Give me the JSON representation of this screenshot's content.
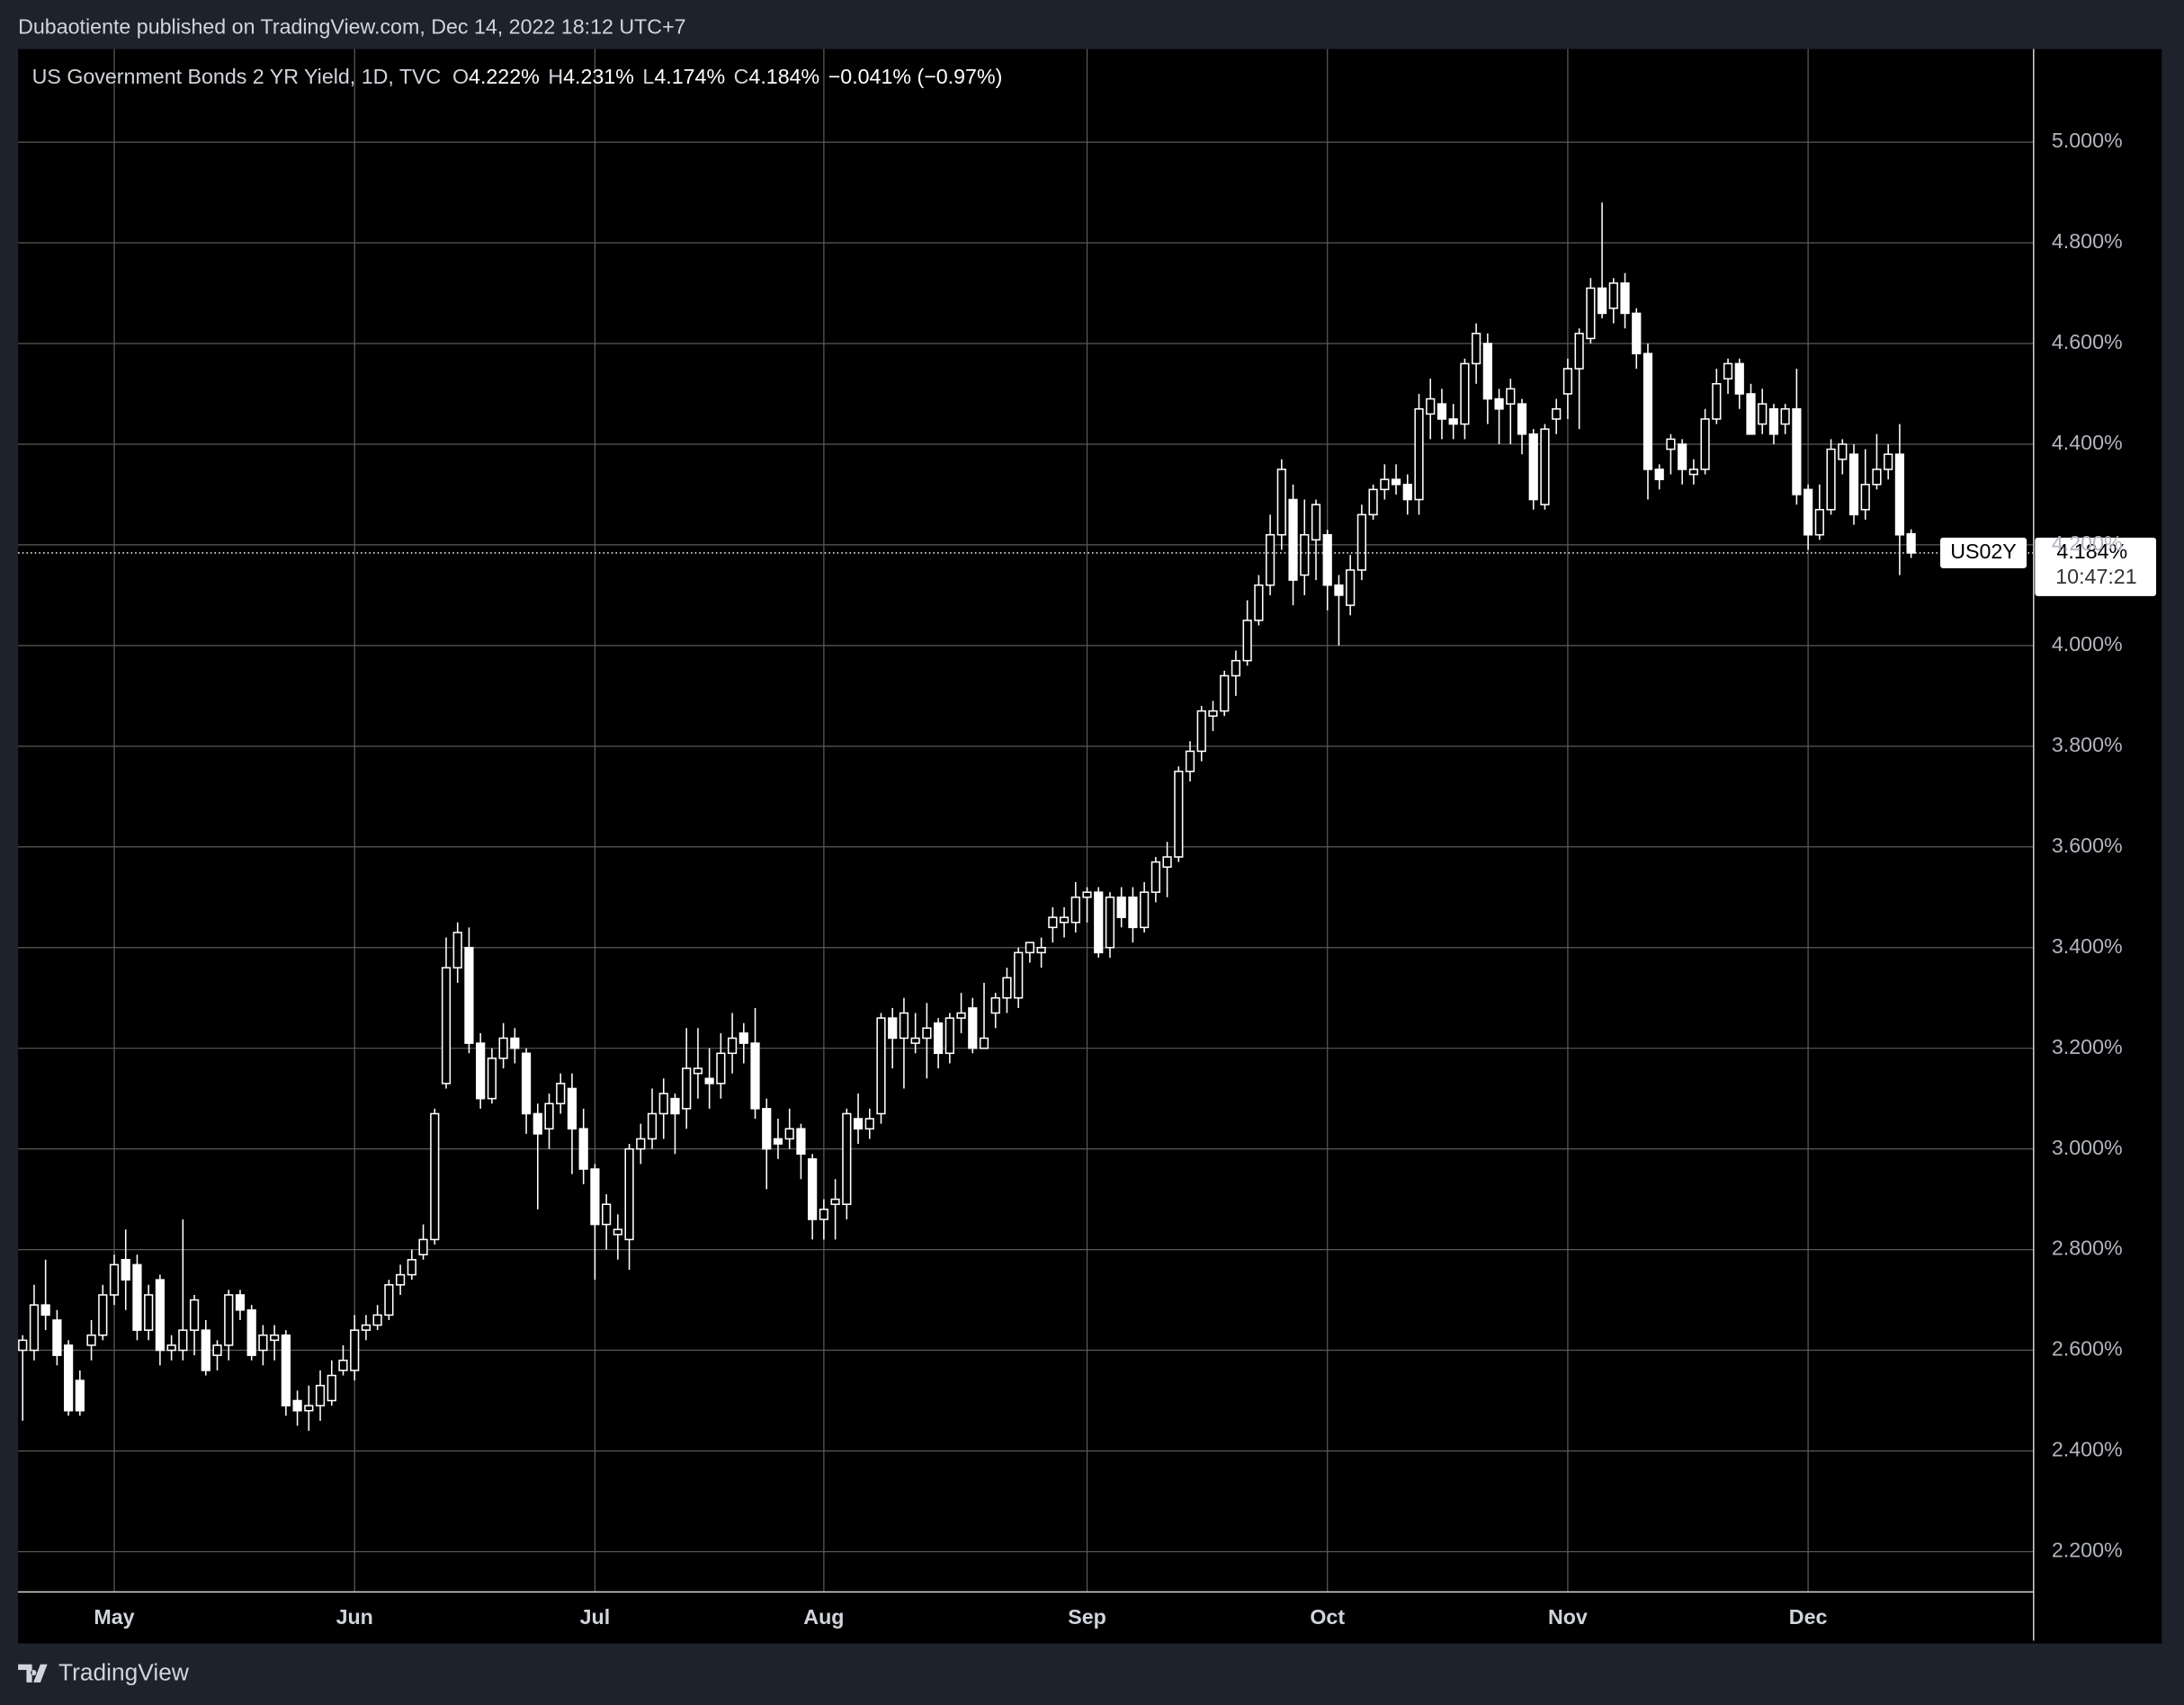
{
  "header": "Dubaotiente published on TradingView.com, Dec 14, 2022 18:12 UTC+7",
  "chart_data": {
    "type": "candlestick",
    "legend": {
      "text": "US Government Bonds 2 YR Yield, 1D, TVC",
      "o": "O",
      "open": "4.222%",
      "h": "H",
      "high": "4.231%",
      "l": "L",
      "low": "4.174%",
      "c": "C",
      "close": "4.184%",
      "change": "−0.041% (−0.97%)"
    },
    "series": [
      {
        "name": "US02Y",
        "open": [
          2.6,
          2.6,
          2.69,
          2.66,
          2.61,
          2.54,
          2.61,
          2.63,
          2.71,
          2.78,
          2.77,
          2.64,
          2.74,
          2.6,
          2.6,
          2.64,
          2.64,
          2.59,
          2.61,
          2.71,
          2.68,
          2.6,
          2.62,
          2.63,
          2.5,
          2.48,
          2.49,
          2.5,
          2.56,
          2.56,
          2.64,
          2.65,
          2.67,
          2.73,
          2.75,
          2.79,
          2.82,
          3.13,
          3.36,
          3.4,
          3.21,
          3.1,
          3.18,
          3.22,
          3.19,
          3.07,
          3.04,
          3.09,
          3.12,
          3.04,
          2.96,
          2.85,
          2.83,
          2.82,
          3.0,
          3.02,
          3.07,
          3.1,
          3.08,
          3.15,
          3.14,
          3.13,
          3.19,
          3.23,
          3.21,
          3.08,
          3.02,
          3.02,
          3.04,
          2.98,
          2.86,
          2.89,
          2.89,
          3.06,
          3.04,
          3.07,
          3.26,
          3.22,
          3.21,
          3.22,
          3.25,
          3.19,
          3.26,
          3.28,
          3.2,
          3.27,
          3.3,
          3.3,
          3.39,
          3.39,
          3.44,
          3.45,
          3.45,
          3.5,
          3.51,
          3.4,
          3.5,
          3.5,
          3.44,
          3.51,
          3.56,
          3.58,
          3.75,
          3.79,
          3.86,
          3.87,
          3.94,
          3.97,
          4.05,
          4.12,
          4.22,
          4.29,
          4.14,
          4.21,
          4.22,
          4.12,
          4.08,
          4.15,
          4.26,
          4.31,
          4.33,
          4.32,
          4.29,
          4.46,
          4.48,
          4.45,
          4.44,
          4.56,
          4.6,
          4.49,
          4.48,
          4.48,
          4.42,
          4.28,
          4.45,
          4.5,
          4.55,
          4.61,
          4.71,
          4.67,
          4.72,
          4.66,
          4.58,
          4.35,
          4.39,
          4.4,
          4.34,
          4.35,
          4.45,
          4.53,
          4.56,
          4.5,
          4.44,
          4.47,
          4.44,
          4.47,
          4.31,
          4.22,
          4.27,
          4.37,
          4.38,
          4.27,
          4.32,
          4.35,
          4.38,
          4.222
        ],
        "high": [
          2.63,
          2.73,
          2.78,
          2.68,
          2.62,
          2.56,
          2.66,
          2.73,
          2.79,
          2.84,
          2.79,
          2.73,
          2.75,
          2.63,
          2.86,
          2.71,
          2.66,
          2.62,
          2.72,
          2.72,
          2.69,
          2.65,
          2.65,
          2.64,
          2.52,
          2.53,
          2.56,
          2.58,
          2.61,
          2.67,
          2.67,
          2.69,
          2.74,
          2.77,
          2.8,
          2.85,
          3.08,
          3.42,
          3.45,
          3.44,
          3.23,
          3.2,
          3.25,
          3.24,
          3.2,
          3.09,
          3.11,
          3.15,
          3.15,
          3.08,
          2.97,
          2.91,
          2.87,
          3.01,
          3.05,
          3.12,
          3.14,
          3.11,
          3.24,
          3.24,
          3.2,
          3.23,
          3.27,
          3.25,
          3.28,
          3.1,
          3.06,
          3.08,
          3.05,
          2.99,
          2.9,
          2.94,
          3.08,
          3.11,
          3.08,
          3.27,
          3.28,
          3.3,
          3.27,
          3.29,
          3.26,
          3.27,
          3.31,
          3.3,
          3.33,
          3.31,
          3.36,
          3.4,
          3.41,
          3.42,
          3.48,
          3.48,
          3.53,
          3.52,
          3.52,
          3.51,
          3.52,
          3.52,
          3.53,
          3.58,
          3.61,
          3.76,
          3.81,
          3.88,
          3.89,
          3.95,
          3.99,
          4.09,
          4.14,
          4.26,
          4.37,
          4.32,
          4.29,
          4.29,
          4.23,
          4.14,
          4.18,
          4.28,
          4.32,
          4.36,
          4.36,
          4.34,
          4.5,
          4.53,
          4.51,
          4.48,
          4.57,
          4.64,
          4.62,
          4.51,
          4.53,
          4.49,
          4.43,
          4.44,
          4.49,
          4.57,
          4.63,
          4.73,
          4.88,
          4.73,
          4.74,
          4.67,
          4.6,
          4.36,
          4.42,
          4.41,
          4.37,
          4.47,
          4.55,
          4.57,
          4.57,
          4.52,
          4.51,
          4.48,
          4.48,
          4.55,
          4.32,
          4.32,
          4.41,
          4.41,
          4.4,
          4.39,
          4.42,
          4.4,
          4.44,
          4.231
        ],
        "low": [
          2.46,
          2.58,
          2.64,
          2.57,
          2.47,
          2.47,
          2.58,
          2.62,
          2.69,
          2.68,
          2.62,
          2.62,
          2.57,
          2.58,
          2.58,
          2.59,
          2.55,
          2.56,
          2.58,
          2.66,
          2.58,
          2.57,
          2.58,
          2.47,
          2.45,
          2.44,
          2.46,
          2.49,
          2.55,
          2.54,
          2.62,
          2.64,
          2.66,
          2.71,
          2.74,
          2.78,
          2.81,
          3.12,
          3.33,
          3.19,
          3.08,
          3.09,
          3.16,
          3.17,
          3.03,
          2.88,
          3.0,
          3.07,
          2.95,
          2.93,
          2.74,
          2.8,
          2.78,
          2.76,
          2.97,
          3.0,
          3.02,
          2.99,
          3.04,
          3.1,
          3.08,
          3.1,
          3.15,
          3.17,
          3.06,
          2.92,
          2.98,
          3.0,
          2.94,
          2.82,
          2.82,
          2.82,
          2.86,
          3.01,
          3.02,
          3.05,
          3.16,
          3.12,
          3.19,
          3.14,
          3.16,
          3.17,
          3.23,
          3.19,
          3.2,
          3.24,
          3.27,
          3.28,
          3.37,
          3.36,
          3.41,
          3.42,
          3.43,
          3.45,
          3.38,
          3.38,
          3.44,
          3.41,
          3.43,
          3.49,
          3.5,
          3.57,
          3.73,
          3.77,
          3.83,
          3.86,
          3.9,
          3.96,
          4.04,
          4.1,
          4.19,
          4.08,
          4.1,
          4.13,
          4.07,
          4.0,
          4.06,
          4.13,
          4.25,
          4.29,
          4.3,
          4.26,
          4.26,
          4.41,
          4.41,
          4.41,
          4.41,
          4.52,
          4.44,
          4.4,
          4.4,
          4.38,
          4.27,
          4.27,
          4.42,
          4.45,
          4.43,
          4.6,
          4.65,
          4.64,
          4.63,
          4.55,
          4.29,
          4.31,
          4.34,
          4.32,
          4.32,
          4.34,
          4.44,
          4.5,
          4.47,
          4.42,
          4.42,
          4.4,
          4.42,
          4.28,
          4.19,
          4.21,
          4.26,
          4.34,
          4.24,
          4.25,
          4.31,
          4.33,
          4.14,
          4.174
        ],
        "close": [
          2.62,
          2.69,
          2.67,
          2.59,
          2.48,
          2.48,
          2.63,
          2.71,
          2.77,
          2.74,
          2.64,
          2.71,
          2.6,
          2.61,
          2.64,
          2.7,
          2.56,
          2.61,
          2.71,
          2.68,
          2.59,
          2.63,
          2.63,
          2.49,
          2.48,
          2.49,
          2.53,
          2.55,
          2.58,
          2.64,
          2.65,
          2.67,
          2.73,
          2.75,
          2.78,
          2.82,
          3.07,
          3.36,
          3.43,
          3.21,
          3.1,
          3.18,
          3.22,
          3.2,
          3.07,
          3.03,
          3.09,
          3.13,
          3.04,
          2.96,
          2.85,
          2.89,
          2.84,
          3.0,
          3.02,
          3.07,
          3.11,
          3.07,
          3.16,
          3.16,
          3.13,
          3.19,
          3.22,
          3.21,
          3.08,
          3.0,
          3.01,
          3.04,
          2.99,
          2.86,
          2.88,
          2.9,
          3.07,
          3.04,
          3.06,
          3.26,
          3.22,
          3.27,
          3.22,
          3.24,
          3.19,
          3.26,
          3.27,
          3.2,
          3.22,
          3.3,
          3.34,
          3.39,
          3.41,
          3.4,
          3.46,
          3.46,
          3.5,
          3.51,
          3.39,
          3.5,
          3.46,
          3.44,
          3.51,
          3.57,
          3.58,
          3.75,
          3.79,
          3.87,
          3.87,
          3.94,
          3.97,
          4.05,
          4.12,
          4.22,
          4.35,
          4.13,
          4.22,
          4.28,
          4.12,
          4.1,
          4.15,
          4.26,
          4.31,
          4.33,
          4.32,
          4.29,
          4.47,
          4.49,
          4.45,
          4.44,
          4.56,
          4.62,
          4.49,
          4.47,
          4.51,
          4.42,
          4.29,
          4.43,
          4.47,
          4.55,
          4.62,
          4.71,
          4.66,
          4.72,
          4.66,
          4.58,
          4.35,
          4.33,
          4.41,
          4.35,
          4.35,
          4.45,
          4.52,
          4.56,
          4.5,
          4.42,
          4.48,
          4.42,
          4.47,
          4.3,
          4.22,
          4.27,
          4.39,
          4.4,
          4.26,
          4.32,
          4.35,
          4.38,
          4.22,
          4.184
        ]
      }
    ],
    "last_value_label": "4.184%",
    "countdown": "10:47:21",
    "xlim": [
      -0.4,
      175.7
    ],
    "xticks": [
      {
        "value": 8,
        "label": "May"
      },
      {
        "value": 29,
        "label": "Jun"
      },
      {
        "value": 50,
        "label": "Jul"
      },
      {
        "value": 70,
        "label": "Aug"
      },
      {
        "value": 93,
        "label": "Sep"
      },
      {
        "value": 114,
        "label": "Oct"
      },
      {
        "value": 135,
        "label": "Nov"
      },
      {
        "value": 156,
        "label": "Dec"
      }
    ],
    "ylim": [
      2.12,
      5.185
    ],
    "yticks": [
      {
        "value": 2.2,
        "label": "2.200%"
      },
      {
        "value": 2.4,
        "label": "2.400%"
      },
      {
        "value": 2.6,
        "label": "2.600%"
      },
      {
        "value": 2.8,
        "label": "2.800%"
      },
      {
        "value": 3.0,
        "label": "3.000%"
      },
      {
        "value": 3.2,
        "label": "3.200%"
      },
      {
        "value": 3.4,
        "label": "3.400%"
      },
      {
        "value": 3.6,
        "label": "3.600%"
      },
      {
        "value": 3.8,
        "label": "3.800%"
      },
      {
        "value": 4.0,
        "label": "4.000%"
      },
      {
        "value": 4.2,
        "label": "4.200%"
      },
      {
        "value": 4.4,
        "label": "4.400%"
      },
      {
        "value": 4.6,
        "label": "4.600%"
      },
      {
        "value": 4.8,
        "label": "4.800%"
      },
      {
        "value": 5.0,
        "label": "5.000%"
      }
    ],
    "grid": true,
    "colors": {
      "up_fill": "#000000",
      "down_fill": "#ffffff",
      "wick": "#ffffff"
    }
  },
  "footer": "TradingView"
}
